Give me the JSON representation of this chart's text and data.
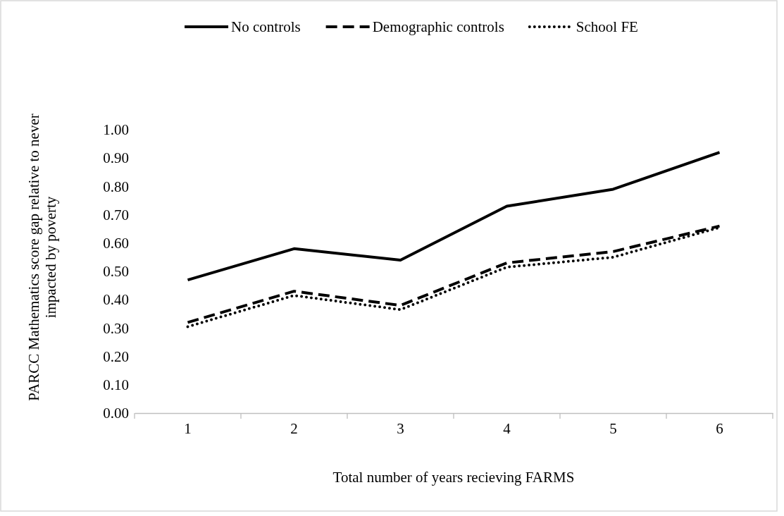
{
  "chart_data": {
    "type": "line",
    "categories": [
      "1",
      "2",
      "3",
      "4",
      "5",
      "6"
    ],
    "xlabel": "Total number of years recieving FARMS",
    "ylabel": "PARCC Mathematics score gap relative to never impacted by poverty",
    "ylim": [
      0,
      1
    ],
    "yticks": [
      {
        "value": 0,
        "label": "0.00"
      },
      {
        "value": 0.1,
        "label": "0.10"
      },
      {
        "value": 0.2,
        "label": "0.20"
      },
      {
        "value": 0.3,
        "label": "0.30"
      },
      {
        "value": 0.4,
        "label": "0.40"
      },
      {
        "value": 0.5,
        "label": "0.50"
      },
      {
        "value": 0.6,
        "label": "0.60"
      },
      {
        "value": 0.7,
        "label": "0.70"
      },
      {
        "value": 0.8,
        "label": "0.80"
      },
      {
        "value": 0.9,
        "label": "0.90"
      },
      {
        "value": 1,
        "label": "1.00"
      }
    ],
    "grid": false,
    "legend": "top",
    "series": [
      {
        "name": "No controls",
        "color": "#000000",
        "line_style": "solid",
        "values": [
          0.47,
          0.58,
          0.54,
          0.73,
          0.79,
          0.92
        ]
      },
      {
        "name": "Demographic controls",
        "color": "#000000",
        "line_style": "dashed",
        "values": [
          0.32,
          0.43,
          0.38,
          0.53,
          0.57,
          0.66
        ]
      },
      {
        "name": "School FE",
        "color": "#000000",
        "line_style": "dotted",
        "values": [
          0.305,
          0.415,
          0.365,
          0.515,
          0.55,
          0.655
        ]
      }
    ]
  }
}
